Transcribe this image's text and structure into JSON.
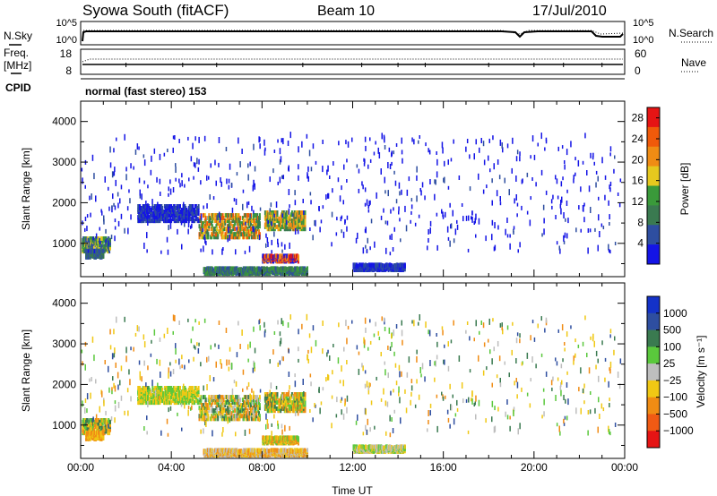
{
  "header": {
    "title": "Syowa South (fitACF)",
    "beam": "Beam 10",
    "date": "17/Jul/2010"
  },
  "noise_panel": {
    "left_label": "N.Sky",
    "left_ticks": [
      "10^5",
      "10^0"
    ],
    "right_ticks": [
      "10^5",
      "10^0"
    ],
    "right_label": "N.Search"
  },
  "freq_panel": {
    "left_label_top": "Freq.",
    "left_label_unit": "[MHz]",
    "left_ticks": [
      "18",
      "8"
    ],
    "right_ticks": [
      "60",
      "0"
    ],
    "right_label": "Nave",
    "cpid_label": "CPID",
    "cpid_value": "normal (fast stereo) 153"
  },
  "colors": {
    "power_scale": [
      "#1414e6",
      "#2e4ea0",
      "#3a7a50",
      "#3a9a3a",
      "#e6c81e",
      "#f08c14",
      "#f05a0a",
      "#e61414"
    ],
    "velocity_scale": [
      "#1432c8",
      "#2e4ea0",
      "#3a7a50",
      "#5ac83c",
      "#bebebe",
      "#f0c814",
      "#f08c14",
      "#f05a14",
      "#e61414"
    ]
  },
  "chart_data": [
    {
      "type": "heatmap",
      "ylabel": "Slant Range [km]",
      "yticks": [
        "1000",
        "2000",
        "3000",
        "4000"
      ],
      "ylim": [
        180,
        4500
      ],
      "xlim": [
        0,
        24
      ],
      "colorbar_label": "Power [dB]",
      "colorbar_ticks": [
        "4",
        "8",
        "12",
        "16",
        "20",
        "24",
        "28"
      ],
      "colorbar_range": [
        0,
        30
      ],
      "echo_regions": [
        {
          "t0": 0.0,
          "t1": 1.3,
          "r0": 750,
          "r1": 1150,
          "level": "high"
        },
        {
          "t0": 5.2,
          "t1": 10.0,
          "r0": 1100,
          "r1": 1800,
          "level": "high"
        },
        {
          "t0": 12.0,
          "t1": 14.3,
          "r0": 300,
          "r1": 450,
          "level": "low"
        },
        {
          "t0": 0.0,
          "t1": 24.0,
          "r0": 700,
          "r1": 3600,
          "level": "sparse"
        }
      ]
    },
    {
      "type": "heatmap",
      "ylabel": "Slant Range [km]",
      "yticks": [
        "1000",
        "2000",
        "3000",
        "4000"
      ],
      "ylim": [
        180,
        4500
      ],
      "xlim": [
        0,
        24
      ],
      "xticks": [
        "00:00",
        "04:00",
        "08:00",
        "12:00",
        "16:00",
        "20:00",
        "00:00"
      ],
      "xlabel": "Time UT",
      "colorbar_label": "Velocity [m s⁻¹]",
      "colorbar_ticks": [
        "1000",
        "500",
        "100",
        "25",
        "−25",
        "−100",
        "−500",
        "−1000"
      ]
    }
  ]
}
